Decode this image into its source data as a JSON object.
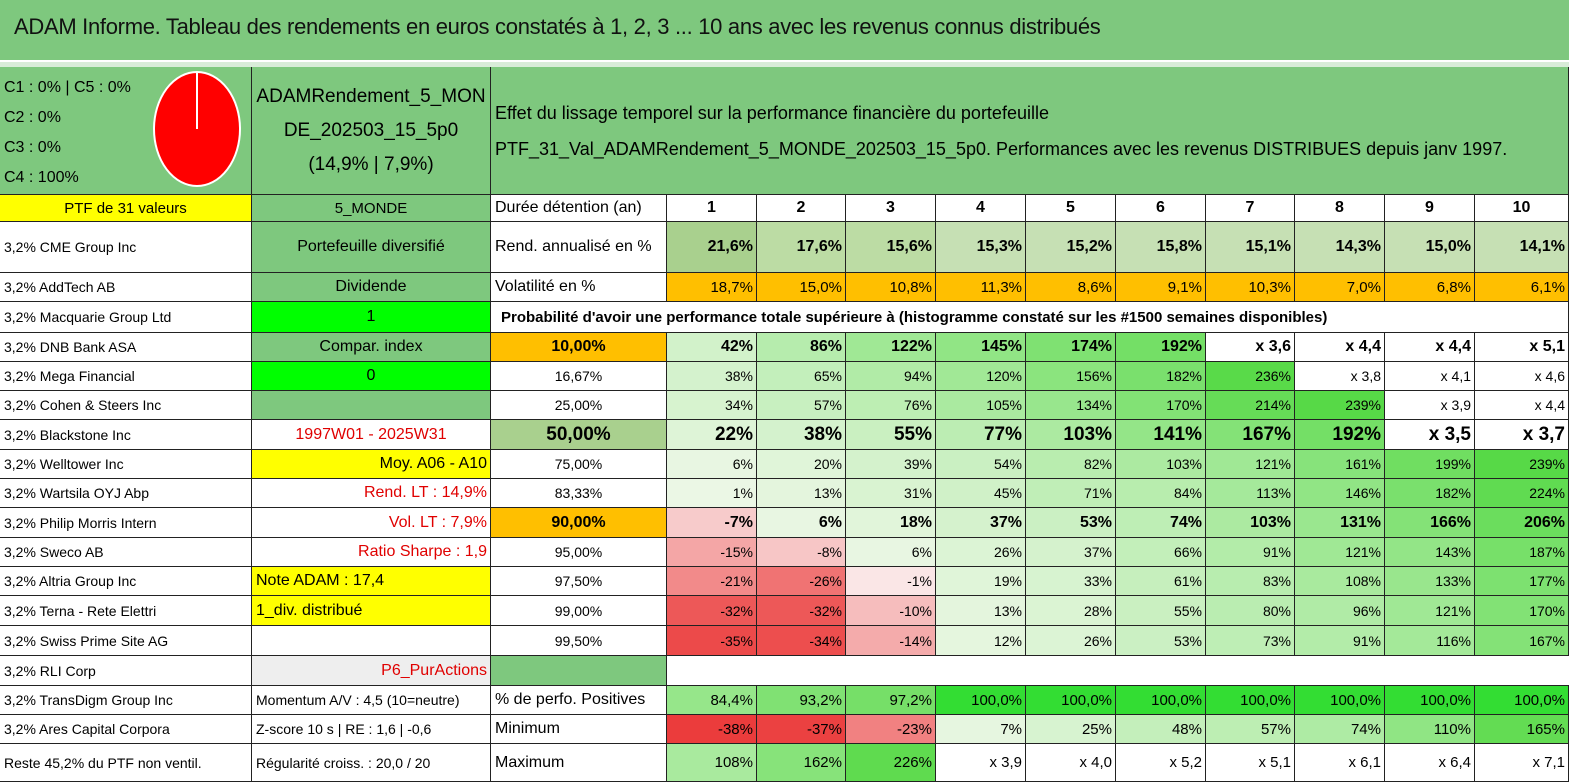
{
  "title": "ADAM Informe. Tableau des rendements en euros constatés à 1, 2, 3 ... 10 ans avec les revenus connus distribués",
  "classes": [
    "C1 : 0% | C5 : 0%",
    "C2 : 0%",
    "C3 : 0%",
    "C4 : 100%"
  ],
  "pie": {
    "fill": "#ff0000",
    "border": "#ffffff"
  },
  "portfolio": {
    "name_line1": "ADAMRendement_5_MON",
    "name_line2": "DE_202503_15_5p0",
    "name_line3": "(14,9% | 7,9%)",
    "count": "PTF de 31 valeurs",
    "zone": "5_MONDE"
  },
  "description": {
    "line1": "Effet du lissage temporel sur la performance financière du portefeuille",
    "line2": "PTF_31_Val_ADAMRendement_5_MONDE_202503_15_5p0. Performances avec les revenus DISTRIBUES depuis janv 1997."
  },
  "holdings": [
    "3,2% CME Group Inc",
    "3,2% AddTech AB",
    "3,2% Macquarie Group Ltd",
    "3,2% DNB Bank ASA",
    "3,2% Mega Financial",
    "3,2% Cohen & Steers Inc",
    "3,2% Blackstone Inc",
    "3,2% Welltower Inc",
    "3,2% Wartsila OYJ Abp",
    "3,2% Philip Morris Intern",
    "3,2% Sweco AB",
    "3,2% Altria Group Inc",
    "3,2% Terna - Rete Elettri",
    "3,2% Swiss Prime Site AG",
    "3,2% RLI Corp",
    "3,2% TransDigm Group Inc",
    "3,2% Ares Capital Corpora",
    "Reste 45,2% du PTF non ventil."
  ],
  "info": [
    "Portefeuille diversifié",
    "Dividende",
    "1",
    "Compar. index",
    "0",
    "",
    "1997W01 - 2025W31",
    "Moy. A06 - A10",
    "Rend. LT : 14,9%",
    "Vol. LT : 7,9%",
    "Ratio Sharpe : 1,9",
    "Note ADAM : 17,4",
    "1_div. distribué",
    "",
    "P6_PurActions",
    "Momentum A/V : 4,5 (10=neutre)",
    "Z-score 10 s | RE : 1,6 | -0,6",
    "Régularité croiss. : 20,0 / 20"
  ],
  "table": {
    "duration_label": "Durée détention (an)",
    "years": [
      "1",
      "2",
      "3",
      "4",
      "5",
      "6",
      "7",
      "8",
      "9",
      "10"
    ],
    "rend_label": "Rend. annualisé en %",
    "rend": [
      "21,6%",
      "17,6%",
      "15,6%",
      "15,3%",
      "15,2%",
      "15,8%",
      "15,1%",
      "14,3%",
      "15,0%",
      "14,1%"
    ],
    "vol_label": "Volatilité en %",
    "vol": [
      "18,7%",
      "15,0%",
      "10,8%",
      "11,3%",
      "8,6%",
      "9,1%",
      "10,3%",
      "7,0%",
      "6,8%",
      "6,1%"
    ],
    "prob_title": "Probabilité d'avoir une performance totale supérieure à (histogramme constaté sur les #1500 semaines disponibles)",
    "prob_rows": [
      {
        "p": "10,00%",
        "v": [
          "42%",
          "86%",
          "122%",
          "145%",
          "174%",
          "192%",
          "x 3,6",
          "x 4,4",
          "x 4,4",
          "x 5,1"
        ]
      },
      {
        "p": "16,67%",
        "v": [
          "38%",
          "65%",
          "94%",
          "120%",
          "156%",
          "182%",
          "236%",
          "x 3,8",
          "x 4,1",
          "x 4,6"
        ]
      },
      {
        "p": "25,00%",
        "v": [
          "34%",
          "57%",
          "76%",
          "105%",
          "134%",
          "170%",
          "214%",
          "239%",
          "x 3,9",
          "x 4,4"
        ]
      },
      {
        "p": "50,00%",
        "v": [
          "22%",
          "38%",
          "55%",
          "77%",
          "103%",
          "141%",
          "167%",
          "192%",
          "x 3,5",
          "x 3,7"
        ]
      },
      {
        "p": "75,00%",
        "v": [
          "6%",
          "20%",
          "39%",
          "54%",
          "82%",
          "103%",
          "121%",
          "161%",
          "199%",
          "239%"
        ]
      },
      {
        "p": "83,33%",
        "v": [
          "1%",
          "13%",
          "31%",
          "45%",
          "71%",
          "84%",
          "113%",
          "146%",
          "182%",
          "224%"
        ]
      },
      {
        "p": "90,00%",
        "v": [
          "-7%",
          "6%",
          "18%",
          "37%",
          "53%",
          "74%",
          "103%",
          "131%",
          "166%",
          "206%"
        ]
      },
      {
        "p": "95,00%",
        "v": [
          "-15%",
          "-8%",
          "6%",
          "26%",
          "37%",
          "66%",
          "91%",
          "121%",
          "143%",
          "187%"
        ]
      },
      {
        "p": "97,50%",
        "v": [
          "-21%",
          "-26%",
          "-1%",
          "19%",
          "33%",
          "61%",
          "83%",
          "108%",
          "133%",
          "177%"
        ]
      },
      {
        "p": "99,00%",
        "v": [
          "-32%",
          "-32%",
          "-10%",
          "13%",
          "28%",
          "55%",
          "80%",
          "96%",
          "121%",
          "170%"
        ]
      },
      {
        "p": "99,50%",
        "v": [
          "-35%",
          "-34%",
          "-14%",
          "12%",
          "26%",
          "53%",
          "73%",
          "91%",
          "116%",
          "167%"
        ]
      }
    ],
    "pos_label": "% de perfo. Positives",
    "pos": [
      "84,4%",
      "93,2%",
      "97,2%",
      "100,0%",
      "100,0%",
      "100,0%",
      "100,0%",
      "100,0%",
      "100,0%",
      "100,0%"
    ],
    "min_label": "Minimum",
    "min": [
      "-38%",
      "-37%",
      "-23%",
      "7%",
      "25%",
      "48%",
      "57%",
      "74%",
      "110%",
      "165%"
    ],
    "max_label": "Maximum",
    "max": [
      "108%",
      "162%",
      "226%",
      "x 3,9",
      "x 4,0",
      "x 5,2",
      "x 5,1",
      "x 6,1",
      "x 6,4",
      "x 7,1"
    ]
  }
}
